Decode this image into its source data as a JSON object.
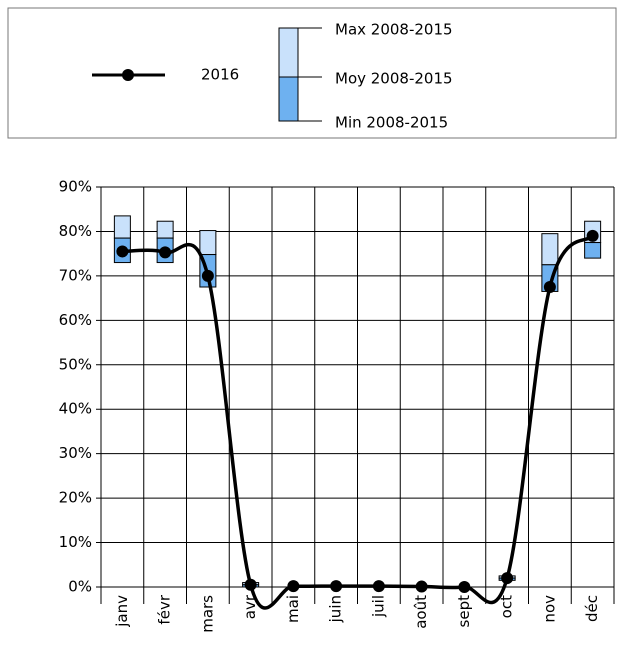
{
  "chart_data": {
    "type": "line",
    "categories": [
      "janv",
      "févr",
      "mars",
      "avr",
      "mai",
      "juin",
      "juil",
      "août",
      "sept",
      "oct",
      "nov",
      "déc"
    ],
    "series": [
      {
        "name": "2016",
        "color": "#000000",
        "values": [
          75.5,
          75.3,
          70,
          0.5,
          0.2,
          0.2,
          0.2,
          0.1,
          0,
          2,
          67.5,
          79
        ]
      },
      {
        "name": "Max 2008-2015",
        "color": "#c9e1fb",
        "values": [
          83.5,
          82.3,
          80.2,
          1,
          null,
          null,
          null,
          null,
          null,
          2.5,
          79.5,
          82.3
        ]
      },
      {
        "name": "Moy 2008-2015",
        "color": "#000000",
        "values": [
          78.5,
          78.5,
          74.8,
          0.5,
          null,
          null,
          null,
          null,
          null,
          2,
          72.5,
          77.5
        ]
      },
      {
        "name": "Min 2008-2015",
        "color": "#6eb1f0",
        "values": [
          73,
          73,
          67.5,
          0,
          null,
          null,
          null,
          null,
          null,
          1.5,
          66.5,
          74
        ]
      }
    ],
    "ylim": [
      0,
      90
    ],
    "yticks": [
      {
        "value": 0,
        "label": "0%"
      },
      {
        "value": 10,
        "label": "10%"
      },
      {
        "value": 20,
        "label": "20%"
      },
      {
        "value": 30,
        "label": "30%"
      },
      {
        "value": 40,
        "label": "40%"
      },
      {
        "value": 50,
        "label": "50%"
      },
      {
        "value": 60,
        "label": "60%"
      },
      {
        "value": 70,
        "label": "70%"
      },
      {
        "value": 80,
        "label": "80%"
      },
      {
        "value": 90,
        "label": "90%"
      }
    ],
    "grid": true
  }
}
